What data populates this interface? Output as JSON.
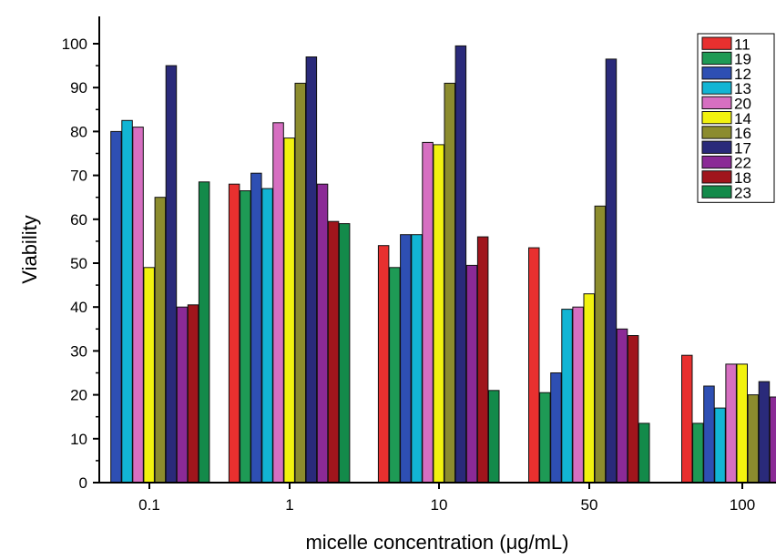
{
  "chart_data": {
    "type": "bar",
    "title": "",
    "xlabel": "micelle concentration (μg/mL)",
    "ylabel": "Viability",
    "ylim": [
      0,
      105
    ],
    "yticks": [
      0,
      10,
      20,
      30,
      40,
      50,
      60,
      70,
      80,
      90,
      100
    ],
    "categories": [
      "0.1",
      "1",
      "10",
      "50",
      "100"
    ],
    "grid": false,
    "legend_position": "top-right",
    "series": [
      {
        "name": "11",
        "color": "#e8302f",
        "values": [
          null,
          68,
          54,
          53.5,
          29
        ]
      },
      {
        "name": "19",
        "color": "#1e9a55",
        "values": [
          null,
          66.5,
          49,
          20.5,
          13.5
        ]
      },
      {
        "name": "12",
        "color": "#2e4fb3",
        "values": [
          80,
          70.5,
          56.5,
          25,
          22
        ]
      },
      {
        "name": "13",
        "color": "#12b5d4",
        "values": [
          82.5,
          67,
          56.5,
          39.5,
          17
        ]
      },
      {
        "name": "20",
        "color": "#d66fc1",
        "values": [
          81,
          82,
          77.5,
          40,
          27
        ]
      },
      {
        "name": "14",
        "color": "#f2f20f",
        "values": [
          49,
          78.5,
          77,
          43,
          27
        ]
      },
      {
        "name": "16",
        "color": "#8c8c2e",
        "values": [
          65,
          91,
          91,
          63,
          20
        ]
      },
      {
        "name": "17",
        "color": "#2a2a7a",
        "values": [
          95,
          97,
          99.5,
          96.5,
          23
        ]
      },
      {
        "name": "22",
        "color": "#8b2a96",
        "values": [
          40,
          68,
          49.5,
          35,
          19.5
        ]
      },
      {
        "name": "18",
        "color": "#a0151c",
        "values": [
          40.5,
          59.5,
          56,
          33.5,
          null
        ]
      },
      {
        "name": "23",
        "color": "#138a4a",
        "values": [
          68.5,
          59,
          21,
          13.5,
          null
        ]
      }
    ]
  }
}
